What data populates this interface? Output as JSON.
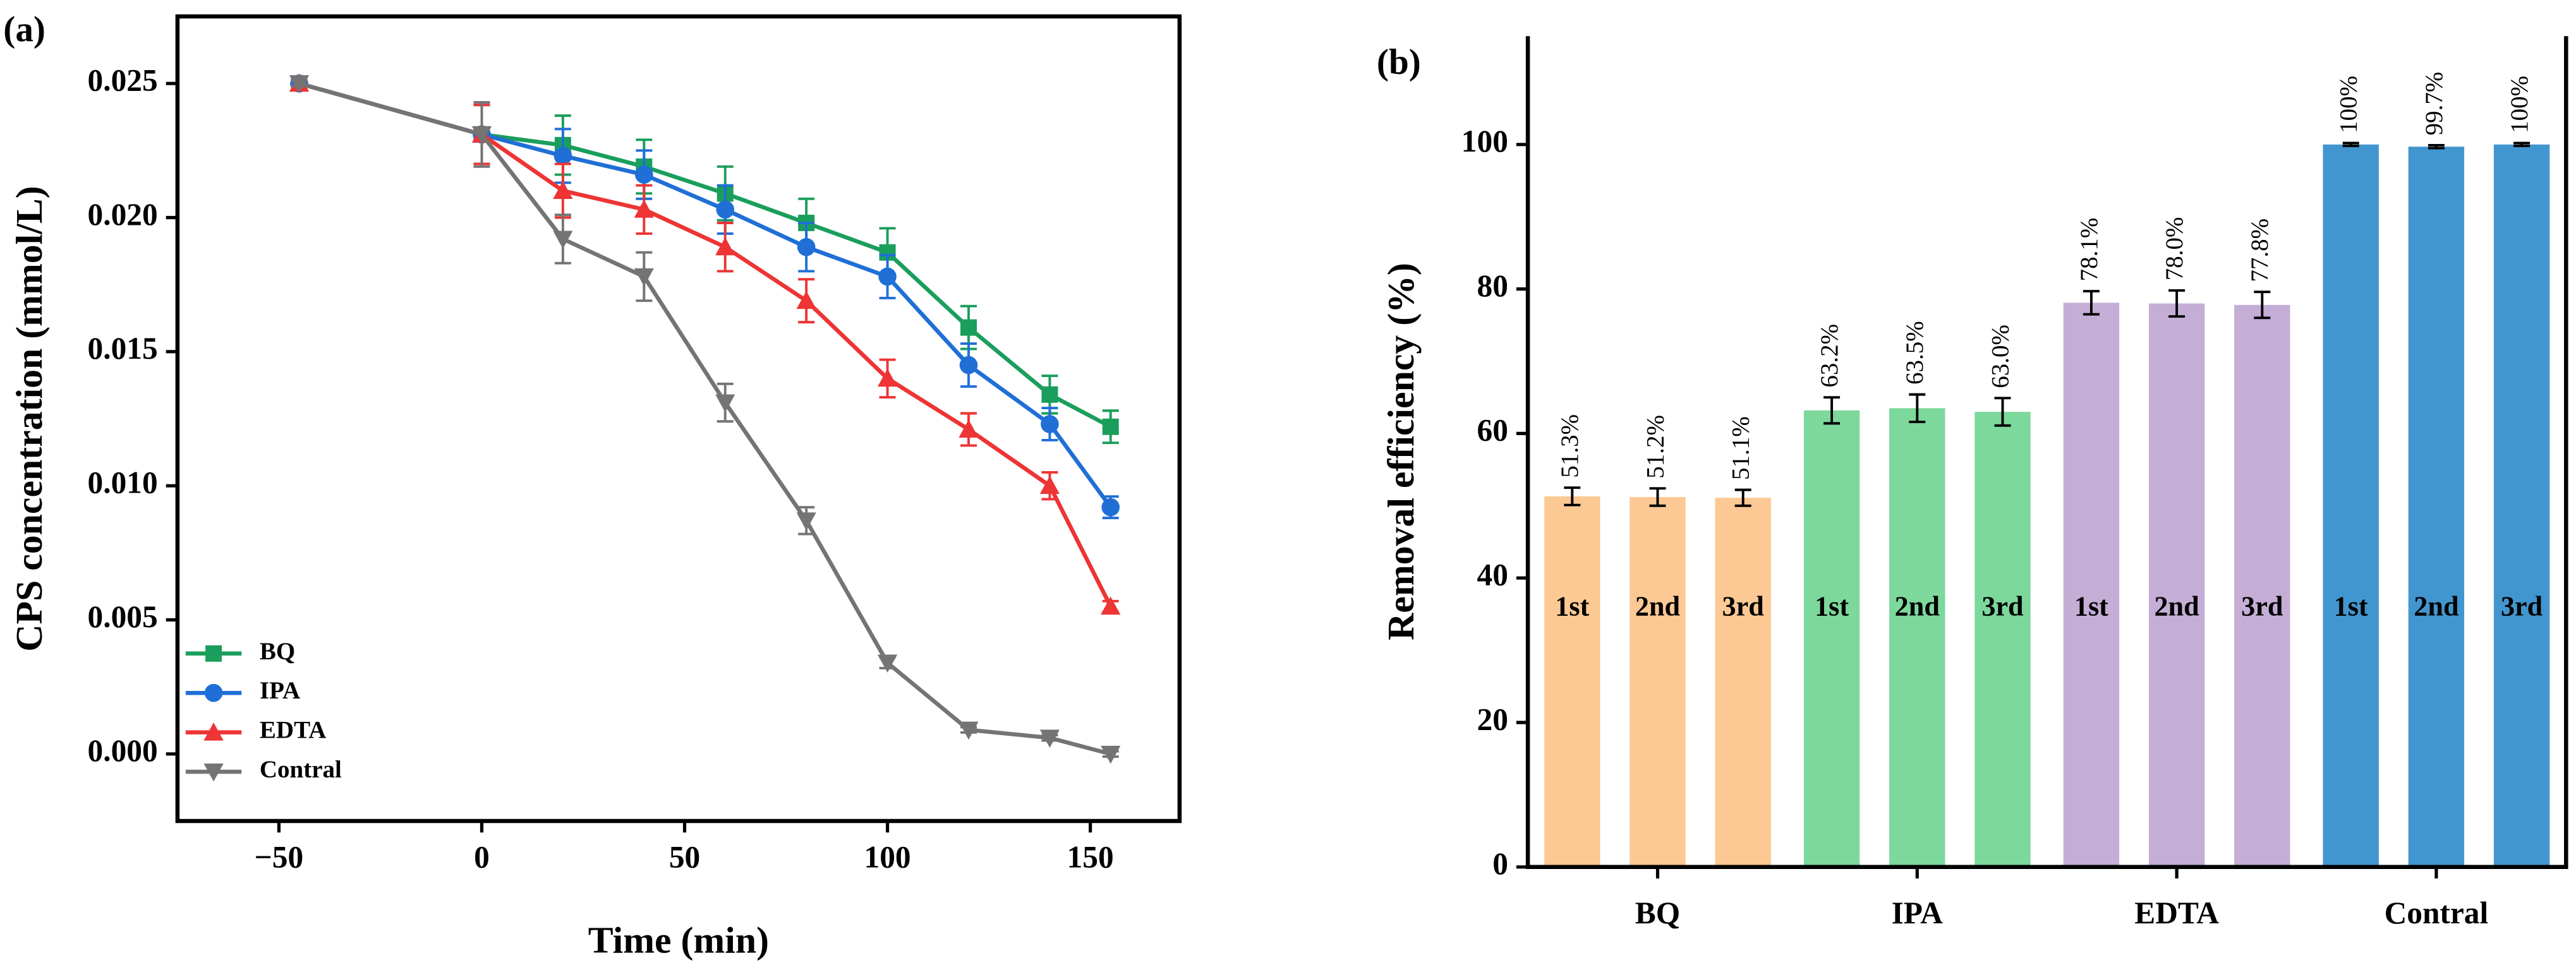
{
  "chart_data": [
    {
      "type": "line",
      "panel_label": "(a)",
      "xlabel": "Time (min)",
      "ylabel": "CPS concentration (mmol/L)",
      "x": [
        -45,
        0,
        20,
        40,
        60,
        80,
        100,
        120,
        140,
        155
      ],
      "series": [
        {
          "name": "BQ",
          "color": "#1a9e5c",
          "marker": "square",
          "values": [
            0.025,
            0.0231,
            0.0227,
            0.0219,
            0.0209,
            0.0198,
            0.0187,
            0.0159,
            0.0134,
            0.0122
          ],
          "errors": [
            0.0001,
            0.0011,
            0.0011,
            0.001,
            0.001,
            0.0009,
            0.0009,
            0.0008,
            0.0007,
            0.0006
          ]
        },
        {
          "name": "IPA",
          "color": "#1f6fd6",
          "marker": "circle",
          "values": [
            0.025,
            0.0231,
            0.0223,
            0.0216,
            0.0203,
            0.0189,
            0.0178,
            0.0145,
            0.0123,
            0.0092
          ],
          "errors": [
            0.0001,
            0.0011,
            0.001,
            0.0009,
            0.0009,
            0.0009,
            0.0008,
            0.0008,
            0.0006,
            0.0004
          ]
        },
        {
          "name": "EDTA",
          "color": "#ee3434",
          "marker": "triangle-up",
          "values": [
            0.025,
            0.0231,
            0.021,
            0.0203,
            0.0189,
            0.0169,
            0.014,
            0.0121,
            0.01,
            0.0055
          ],
          "errors": [
            0.0001,
            0.0011,
            0.001,
            0.0009,
            0.0009,
            0.0008,
            0.0007,
            0.0006,
            0.0005,
            0.0002
          ]
        },
        {
          "name": "Contral",
          "color": "#747474",
          "marker": "triangle-down",
          "values": [
            0.025,
            0.0231,
            0.0192,
            0.0178,
            0.0131,
            0.0087,
            0.0034,
            0.0009,
            0.0006,
            0.0
          ],
          "errors": [
            0.0001,
            0.0012,
            0.0009,
            0.0009,
            0.0007,
            0.0005,
            0.0002,
            0.0001,
            0.0001,
            0.0001
          ]
        }
      ],
      "xlim": [
        -75,
        172
      ],
      "xticks": [
        {
          "value": -50,
          "label": "−50"
        },
        0,
        50,
        100,
        150
      ],
      "ylim": [
        -0.0025,
        0.0275
      ],
      "yticks": [
        {
          "value": 0,
          "label": "0.000"
        },
        {
          "value": 0.005,
          "label": "0.005"
        },
        {
          "value": 0.01,
          "label": "0.010"
        },
        {
          "value": 0.015,
          "label": "0.015"
        },
        {
          "value": 0.02,
          "label": "0.020"
        },
        {
          "value": 0.025,
          "label": "0.025"
        }
      ],
      "legend": "lower left"
    },
    {
      "type": "bar",
      "panel_label": "(b)",
      "ylabel": "Removal efficiency (%)",
      "categories": [
        "BQ",
        "IPA",
        "EDTA",
        "Contral"
      ],
      "colors": [
        "#fcc994",
        "#7dd89c",
        "#c4aed6",
        "#4296cf"
      ],
      "series": [
        {
          "name": "1st",
          "values": [
            51.3,
            63.2,
            78.1,
            100
          ],
          "value_labels": [
            "51.3%",
            "63.2%",
            "78.1%",
            "100%"
          ],
          "errors": [
            1.2,
            1.8,
            1.6,
            0.2
          ]
        },
        {
          "name": "2nd",
          "values": [
            51.2,
            63.5,
            78.0,
            99.7
          ],
          "value_labels": [
            "51.2%",
            "63.5%",
            "78.0%",
            "99.7%"
          ],
          "errors": [
            1.2,
            1.9,
            1.8,
            0.2
          ]
        },
        {
          "name": "3rd",
          "values": [
            51.1,
            63.0,
            77.8,
            100
          ],
          "value_labels": [
            "51.1%",
            "63.0%",
            "77.8%",
            "100%"
          ],
          "errors": [
            1.1,
            1.9,
            1.8,
            0.2
          ]
        }
      ],
      "ylim": [
        0,
        115
      ],
      "yticks": [
        0,
        20,
        40,
        60,
        80,
        100
      ]
    }
  ]
}
